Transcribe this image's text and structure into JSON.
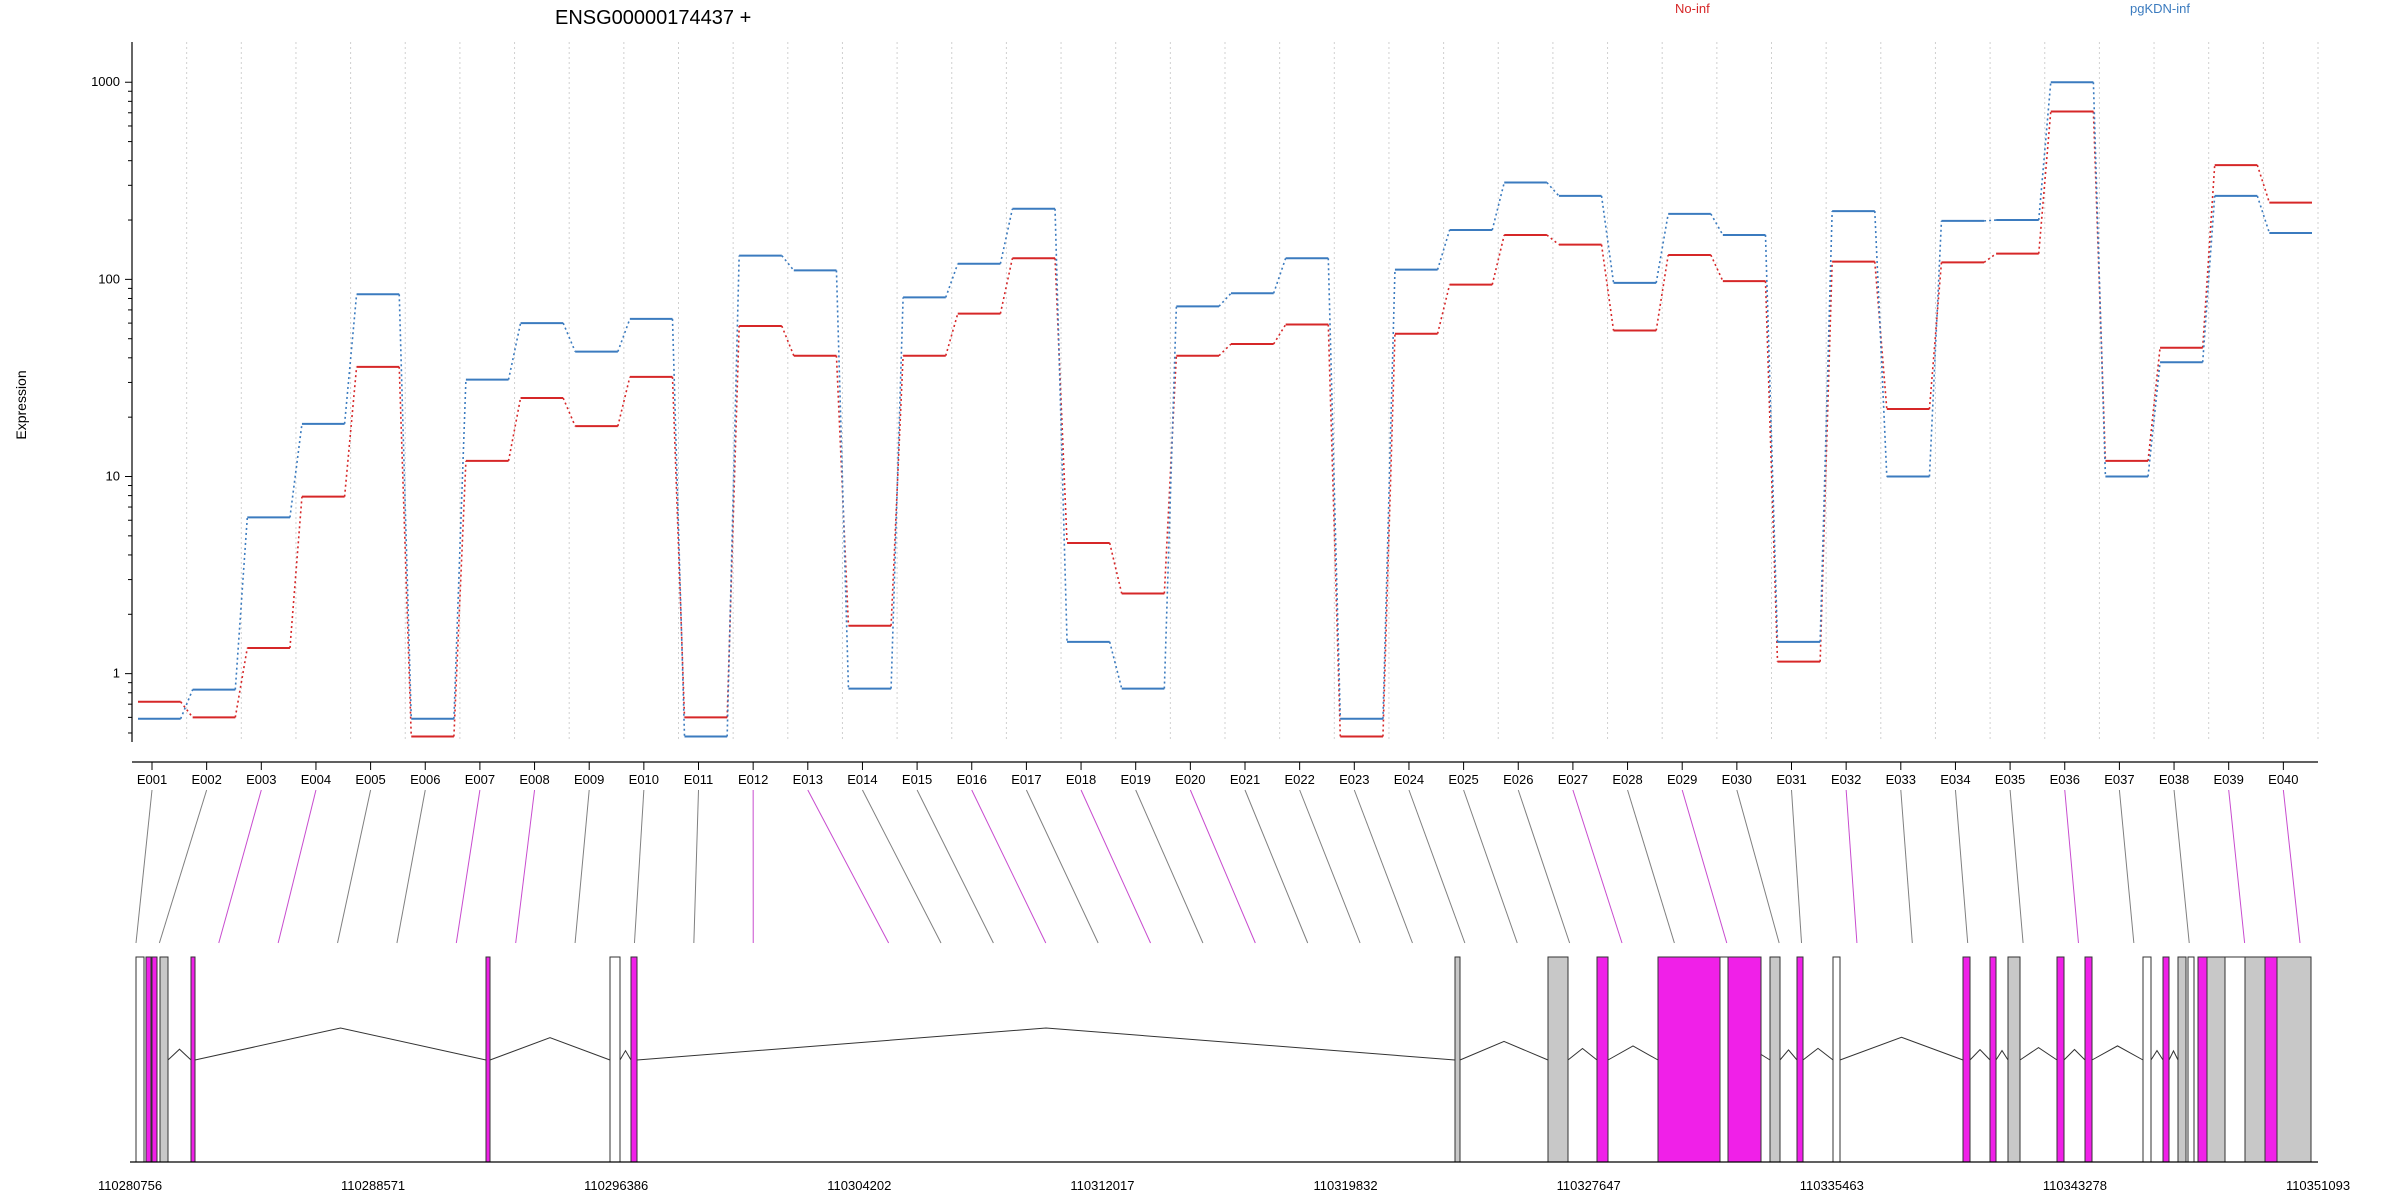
{
  "chart_data": {
    "type": "line",
    "title": "ENSG00000174437 +",
    "ylabel": "Expression",
    "yscale": "log",
    "ylim": [
      0.45,
      1600
    ],
    "yticks": [
      "1",
      "10",
      "100",
      "1000"
    ],
    "grid": "vertical dotted at exon bins",
    "legend_placement": "top-right",
    "categories": [
      "E001",
      "E002",
      "E003",
      "E004",
      "E005",
      "E006",
      "E007",
      "E008",
      "E009",
      "E010",
      "E011",
      "E012",
      "E013",
      "E014",
      "E015",
      "E016",
      "E017",
      "E018",
      "E019",
      "E020",
      "E021",
      "E022",
      "E023",
      "E024",
      "E025",
      "E026",
      "E027",
      "E028",
      "E029",
      "E030",
      "E031",
      "E032",
      "E033",
      "E034",
      "E035",
      "E036",
      "E037",
      "E038",
      "E039",
      "E040"
    ],
    "series": [
      {
        "name": "No-inf",
        "color": "#d62728",
        "values": [
          0.72,
          0.6,
          1.35,
          7.9,
          36,
          0.48,
          12,
          25,
          18,
          32,
          0.6,
          58,
          41,
          1.75,
          41,
          67,
          128,
          4.6,
          2.55,
          41,
          47,
          59,
          0.48,
          53,
          94,
          168,
          150,
          55,
          133,
          98,
          1.15,
          123,
          22,
          122,
          135,
          710,
          12,
          45,
          380,
          245
        ]
      },
      {
        "name": "pgKDN-inf",
        "color": "#3b7bbf",
        "values": [
          0.59,
          0.83,
          6.2,
          18.5,
          84,
          0.59,
          31,
          60,
          43,
          63,
          0.48,
          132,
          111,
          0.84,
          81,
          120,
          228,
          1.45,
          0.84,
          73,
          85,
          128,
          0.59,
          112,
          178,
          310,
          265,
          96,
          215,
          168,
          1.45,
          222,
          10,
          198,
          200,
          1000,
          10,
          38,
          265,
          172
        ]
      }
    ],
    "gene_model": {
      "coordinate_ticks": [
        "110280756",
        "110288571",
        "110296386",
        "110304202",
        "110312017",
        "110319832",
        "110327647",
        "110335463",
        "110343278",
        "110351093"
      ],
      "exon_highlight_color": "#f020e8",
      "exon_gray_color": "#c8c8c8",
      "exon_highlight": [
        false,
        false,
        true,
        true,
        false,
        false,
        true,
        true,
        false,
        false,
        false,
        true,
        true,
        false,
        false,
        true,
        false,
        true,
        false,
        true,
        false,
        false,
        false,
        false,
        false,
        false,
        true,
        false,
        true,
        false,
        false,
        true,
        false,
        false,
        false,
        true,
        false,
        false,
        true,
        true
      ]
    }
  }
}
